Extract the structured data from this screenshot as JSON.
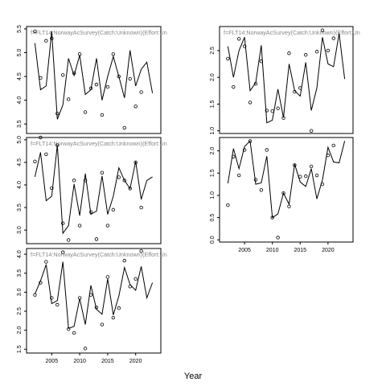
{
  "figure": {
    "xlabel": "Year"
  },
  "chart_data": [
    {
      "type": "line",
      "panel_label": "f=FLT14:NorwayAcSurvey(Catch:Unknown)(Effort:Un",
      "xlim": [
        2000.5,
        2024.5
      ],
      "ylim": [
        3.3,
        5.55
      ],
      "xticks": [],
      "yticks": [
        3.5,
        4.0,
        4.5,
        5.0,
        5.5
      ],
      "series": [
        {
          "kind": "line",
          "x": [
            2002,
            2003,
            2004,
            2005,
            2006,
            2007,
            2008,
            2009,
            2010,
            2011,
            2012,
            2013,
            2014,
            2015,
            2016,
            2017,
            2018,
            2019,
            2020,
            2021,
            2022,
            2023
          ],
          "y": [
            5.2,
            4.22,
            4.3,
            5.45,
            3.6,
            3.9,
            4.88,
            4.52,
            4.95,
            4.12,
            4.22,
            4.88,
            4.0,
            4.5,
            4.92,
            4.5,
            4.05,
            5.05,
            4.3,
            4.65,
            4.8,
            4.15
          ]
        },
        {
          "kind": "points",
          "x": [
            2002,
            2003,
            2004,
            2005,
            2006,
            2007,
            2008,
            2009,
            2010,
            2011,
            2012,
            2013,
            2014,
            2015,
            2016,
            2017,
            2018,
            2019,
            2020,
            2021
          ],
          "y": [
            5.45,
            4.47,
            5.25,
            5.3,
            3.72,
            4.53,
            4.02,
            4.57,
            4.97,
            3.75,
            4.25,
            4.33,
            3.69,
            4.28,
            4.97,
            4.5,
            3.42,
            4.45,
            3.87,
            4.17
          ]
        }
      ]
    },
    {
      "type": "line",
      "panel_label": "f=FLT14:NorwayAcSurvey(Catch:Unknown)(Effort:Un",
      "xlim": [
        2000.5,
        2024.5
      ],
      "ylim": [
        0.95,
        2.95
      ],
      "xticks": [],
      "yticks": [
        1.0,
        1.5,
        2.0,
        2.5
      ],
      "series": [
        {
          "kind": "line",
          "x": [
            2002,
            2003,
            2004,
            2005,
            2006,
            2007,
            2008,
            2009,
            2010,
            2011,
            2012,
            2013,
            2014,
            2015,
            2016,
            2017,
            2018,
            2019,
            2020,
            2021,
            2022,
            2023
          ],
          "y": [
            2.58,
            2.0,
            2.5,
            2.75,
            1.75,
            1.9,
            2.6,
            1.15,
            1.2,
            1.78,
            1.25,
            2.25,
            1.75,
            1.65,
            2.28,
            1.38,
            1.8,
            2.75,
            2.25,
            2.2,
            2.82,
            1.97
          ]
        },
        {
          "kind": "points",
          "x": [
            2002,
            2003,
            2004,
            2005,
            2006,
            2007,
            2008,
            2009,
            2010,
            2011,
            2012,
            2013,
            2014,
            2015,
            2016,
            2017,
            2018,
            2019,
            2020,
            2021
          ],
          "y": [
            2.35,
            1.82,
            2.72,
            2.58,
            1.53,
            1.88,
            2.3,
            1.38,
            1.37,
            1.42,
            1.24,
            2.45,
            1.73,
            1.8,
            2.42,
            1.0,
            2.48,
            2.88,
            2.5,
            2.73
          ]
        }
      ]
    },
    {
      "type": "line",
      "panel_label": "f=FLT14:NorwayAcSurvey(Catch:Unknown)(Effort:Un",
      "xlim": [
        2000.5,
        2024.5
      ],
      "ylim": [
        2.7,
        5.05
      ],
      "xticks": [],
      "yticks": [
        3.0,
        3.5,
        4.0,
        4.5,
        5.0
      ],
      "series": [
        {
          "kind": "line",
          "x": [
            2002,
            2003,
            2004,
            2005,
            2006,
            2007,
            2008,
            2009,
            2010,
            2011,
            2012,
            2013,
            2014,
            2015,
            2016,
            2017,
            2018,
            2019,
            2020,
            2021,
            2022,
            2023
          ],
          "y": [
            4.18,
            4.72,
            3.65,
            3.75,
            4.88,
            2.93,
            3.1,
            4.02,
            3.32,
            4.25,
            3.35,
            3.42,
            4.2,
            3.35,
            3.75,
            4.38,
            4.1,
            3.92,
            4.52,
            3.68,
            4.1,
            4.18
          ]
        },
        {
          "kind": "points",
          "x": [
            2002,
            2003,
            2004,
            2005,
            2006,
            2007,
            2008,
            2009,
            2010,
            2011,
            2012,
            2013,
            2014,
            2015,
            2016,
            2017,
            2018,
            2019,
            2020,
            2021
          ],
          "y": [
            4.52,
            5.05,
            4.68,
            3.93,
            4.88,
            3.15,
            2.78,
            4.1,
            3.1,
            4.1,
            3.4,
            2.8,
            4.27,
            3.1,
            3.45,
            4.17,
            4.1,
            3.92,
            4.5,
            3.5
          ]
        }
      ]
    },
    {
      "type": "line",
      "panel_label": "",
      "xlim": [
        2000.5,
        2024.5
      ],
      "ylim": [
        -0.05,
        2.3
      ],
      "xticks": [
        2005,
        2010,
        2015,
        2020
      ],
      "yticks": [
        0.0,
        0.5,
        1.0,
        1.5,
        2.0
      ],
      "series": [
        {
          "kind": "line",
          "x": [
            2002,
            2003,
            2004,
            2005,
            2006,
            2007,
            2008,
            2009,
            2010,
            2011,
            2012,
            2013,
            2014,
            2015,
            2016,
            2017,
            2018,
            2019,
            2020,
            2021,
            2022,
            2023
          ],
          "y": [
            1.27,
            2.05,
            1.6,
            2.1,
            2.22,
            1.25,
            1.28,
            1.88,
            0.5,
            0.58,
            1.05,
            0.8,
            1.7,
            1.3,
            1.2,
            1.6,
            0.92,
            1.35,
            2.08,
            1.75,
            1.73,
            2.22
          ]
        },
        {
          "kind": "points",
          "x": [
            2002,
            2003,
            2004,
            2005,
            2006,
            2007,
            2008,
            2009,
            2010,
            2011,
            2012,
            2013,
            2014,
            2015,
            2016,
            2017,
            2018,
            2019,
            2020,
            2021
          ],
          "y": [
            0.78,
            1.87,
            1.45,
            2.02,
            2.22,
            1.35,
            1.12,
            2.02,
            0.5,
            0.05,
            1.05,
            0.75,
            1.68,
            1.42,
            1.43,
            1.65,
            1.45,
            1.25,
            1.9,
            2.12
          ]
        }
      ]
    },
    {
      "type": "line",
      "panel_label": "f=FLT14:NorwayAcSurvey(Catch:Unknown)(Effort:Un",
      "xlim": [
        2000.5,
        2024.5
      ],
      "ylim": [
        1.4,
        4.15
      ],
      "xticks": [
        2005,
        2010,
        2015,
        2020
      ],
      "yticks": [
        1.5,
        2.0,
        2.5,
        3.0,
        3.5,
        4.0
      ],
      "series": [
        {
          "kind": "line",
          "x": [
            2002,
            2003,
            2004,
            2005,
            2006,
            2007,
            2008,
            2009,
            2010,
            2011,
            2012,
            2013,
            2014,
            2015,
            2016,
            2017,
            2018,
            2019,
            2020,
            2021,
            2022,
            2023
          ],
          "y": [
            2.95,
            3.3,
            3.73,
            2.7,
            2.78,
            3.8,
            2.05,
            2.1,
            2.83,
            2.15,
            3.18,
            2.55,
            2.42,
            3.35,
            2.4,
            2.9,
            3.65,
            3.2,
            3.05,
            3.68,
            2.85,
            3.25
          ]
        },
        {
          "kind": "points",
          "x": [
            2002,
            2003,
            2004,
            2005,
            2006,
            2007,
            2008,
            2009,
            2010,
            2011,
            2012,
            2013,
            2014,
            2015,
            2016,
            2017,
            2018,
            2019,
            2020,
            2021
          ],
          "y": [
            2.93,
            3.25,
            3.8,
            2.85,
            2.67,
            4.05,
            2.03,
            1.93,
            2.85,
            1.52,
            2.93,
            2.6,
            2.15,
            3.4,
            2.33,
            2.58,
            3.83,
            3.15,
            3.35,
            4.08
          ]
        }
      ]
    }
  ]
}
